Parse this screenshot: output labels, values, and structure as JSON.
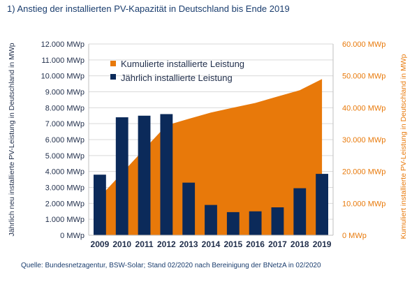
{
  "title": "1) Anstieg der installierten PV-Kapazität in Deutschland bis Ende 2019",
  "source": "Quelle: Bundesnetzagentur, BSW-Solar; Stand 02/2020 nach Bereinigung der BNetzA in 02/2020",
  "colors": {
    "bars": "#0b2a5a",
    "area": "#e8790a",
    "grid": "#d9d9d9"
  },
  "chart_data": {
    "type": "bar",
    "categories": [
      "2009",
      "2010",
      "2011",
      "2012",
      "2013",
      "2014",
      "2015",
      "2016",
      "2017",
      "2018",
      "2019"
    ],
    "series": [
      {
        "name": "Jährlich installierte Leistung",
        "type": "bar",
        "axis": "left",
        "values": [
          3800,
          7400,
          7500,
          7600,
          3300,
          1900,
          1450,
          1500,
          1750,
          2950,
          3850
        ]
      },
      {
        "name": "Kumulierte installierte Leistung",
        "type": "area",
        "axis": "right",
        "values": [
          12000,
          19500,
          27000,
          34500,
          36500,
          38500,
          40000,
          41500,
          43500,
          45500,
          49000
        ]
      }
    ],
    "ylabel_left": "Jährlich neu installierte PV-Leistung in Deutschland in MWp",
    "ylabel_right": "Kumuliert installierte PV-Leistung in Deutschland in MWp",
    "ylim_left": [
      0,
      12000
    ],
    "ylim_right": [
      0,
      60000
    ],
    "yticks_left": [
      "0 MWp",
      "1.000 MWp",
      "2.000 MWp",
      "3.000 MWp",
      "4.000 MWp",
      "5.000 MWp",
      "6.000 MWp",
      "7.000 MWp",
      "8.000 MWp",
      "9.000 MWp",
      "10.000 MWp",
      "11.000 MWp",
      "12.000 MWp"
    ],
    "yticks_right": [
      "0 MWp",
      "10.000 MWp",
      "20.000 MWp",
      "30.000 MWp",
      "40.000 MWp",
      "50.000 MWp",
      "60.000 MWp"
    ],
    "grid": true,
    "legend_position": "top-left"
  }
}
